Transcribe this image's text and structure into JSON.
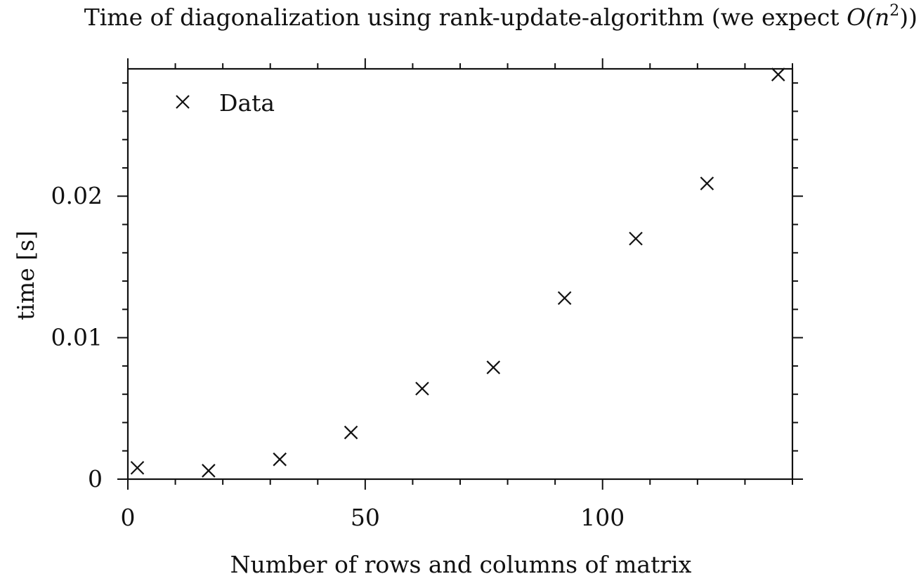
{
  "chart_data": {
    "type": "scatter",
    "title": {
      "main": "Time of diagonalization using rank-update-algorithm (we expect ",
      "math": "O(n",
      "sup": "2",
      "close": "))"
    },
    "xlabel": "Number of rows and columns of matrix",
    "ylabel": "time [s]",
    "xlim": [
      0,
      140
    ],
    "ylim": [
      0,
      0.029
    ],
    "x_ticks": [
      0,
      50,
      100
    ],
    "x_tick_labels": [
      "0",
      "50",
      "100"
    ],
    "x_minor_step": 10,
    "y_ticks": [
      0,
      0.01,
      0.02
    ],
    "y_tick_labels": [
      "0",
      "0.01",
      "0.02"
    ],
    "y_minor_step": 0.002,
    "grid": false,
    "legend_position": "top-left",
    "marker": "x",
    "color": "#111111",
    "series": [
      {
        "name": "Data",
        "x": [
          2,
          17,
          32,
          47,
          62,
          77,
          92,
          107,
          122,
          137
        ],
        "y": [
          0.0008,
          0.0006,
          0.0014,
          0.0033,
          0.0064,
          0.0079,
          0.0128,
          0.017,
          0.0209,
          0.0286
        ]
      }
    ]
  }
}
